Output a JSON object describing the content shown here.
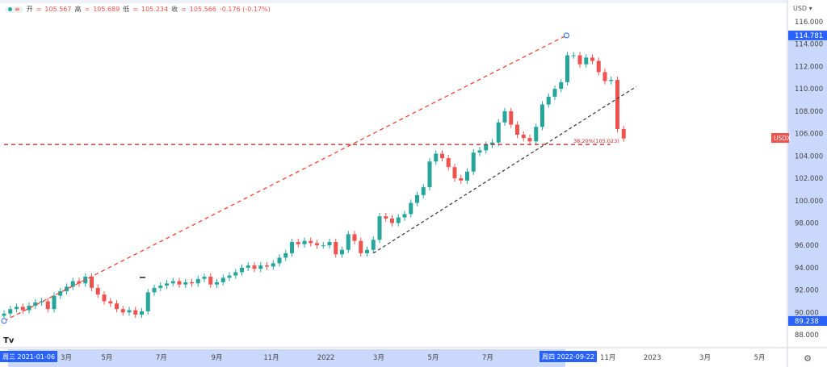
{
  "legend": {
    "open_label": "开",
    "open": "105.567",
    "high_label": "高",
    "high": "105.689",
    "low_label": "低",
    "low": "105.234",
    "close_label": "收",
    "close": "105.566",
    "change": "-0.176 (-0.17%)"
  },
  "currency": "USD",
  "symbol_tag": "USDX",
  "crosshair_x_left": "周三 2021-01-06",
  "crosshair_x_right": "周四 2022-09-22",
  "price_marker_high": "114.781",
  "price_marker_low": "89.238",
  "colors": {
    "up": "#26a69a",
    "down": "#ef5350",
    "accent": "#2962ff",
    "highlight": "#c9d8fb"
  },
  "chart_data": {
    "type": "candlestick",
    "start_date": "2021-01-06",
    "interval": "weekly",
    "closes": [
      89.9,
      90.3,
      90.5,
      90.2,
      90.6,
      90.9,
      91.0,
      90.3,
      91.5,
      91.9,
      92.3,
      92.8,
      92.6,
      93.2,
      92.2,
      91.6,
      91.0,
      90.8,
      90.3,
      90.0,
      90.2,
      89.8,
      90.1,
      91.8,
      92.2,
      92.4,
      92.6,
      92.8,
      92.5,
      92.7,
      92.6,
      93.0,
      93.2,
      92.5,
      92.7,
      93.1,
      93.3,
      93.6,
      94.0,
      94.2,
      93.9,
      94.2,
      94.1,
      94.4,
      94.9,
      95.3,
      96.3,
      96.1,
      96.4,
      96.2,
      96.0,
      96.0,
      96.3,
      95.2,
      95.6,
      97.0,
      96.4,
      95.3,
      95.6,
      96.5,
      98.6,
      98.4,
      98.0,
      98.5,
      98.8,
      99.8,
      100.5,
      101.2,
      103.5,
      104.2,
      103.8,
      103.0,
      102.0,
      101.8,
      102.6,
      104.3,
      104.5,
      105.0,
      105.2,
      107.0,
      108.0,
      106.8,
      105.9,
      105.6,
      105.3,
      106.6,
      108.6,
      109.3,
      110.0,
      110.6,
      113.0,
      113.0,
      112.2,
      112.8,
      112.5,
      111.5,
      110.7,
      110.8,
      106.4,
      105.566
    ],
    "ylim": [
      87,
      117
    ],
    "y_ticks": [
      "116.000",
      "114.000",
      "112.000",
      "110.000",
      "108.000",
      "106.000",
      "104.000",
      "102.000",
      "100.000",
      "98.000",
      "96.000",
      "94.000",
      "92.000",
      "90.000",
      "88.000"
    ],
    "x_ticks": [
      {
        "date": "2021-03-01",
        "label": "3月"
      },
      {
        "date": "2021-05-01",
        "label": "5月"
      },
      {
        "date": "2021-07-01",
        "label": "7月"
      },
      {
        "date": "2021-09-01",
        "label": "9月"
      },
      {
        "date": "2021-11-01",
        "label": "11月"
      },
      {
        "date": "2022-01-01",
        "label": "2022"
      },
      {
        "date": "2022-03-01",
        "label": "3月"
      },
      {
        "date": "2022-05-01",
        "label": "5月"
      },
      {
        "date": "2022-07-01",
        "label": "7月"
      },
      {
        "date": "2022-11-01",
        "label": "11月"
      },
      {
        "date": "2023-01-01",
        "label": "2023"
      },
      {
        "date": "2023-03-01",
        "label": "3月"
      },
      {
        "date": "2023-05-01",
        "label": "5月"
      }
    ],
    "drawings": {
      "trend_red": {
        "from": [
          "2021-01-06",
          89.238
        ],
        "to": [
          "2022-09-27",
          114.781
        ],
        "color": "#f44336"
      },
      "trend_black": {
        "from": [
          "2022-02-23",
          95.3
        ],
        "to": [
          "2022-12-14",
          110.2
        ],
        "color": "#333333"
      },
      "fib_level": {
        "price": 105.023,
        "from": "2021-01-06",
        "to": "2022-11-15",
        "label": "38.20%(105.023)",
        "color": "#b71c1c"
      }
    }
  }
}
